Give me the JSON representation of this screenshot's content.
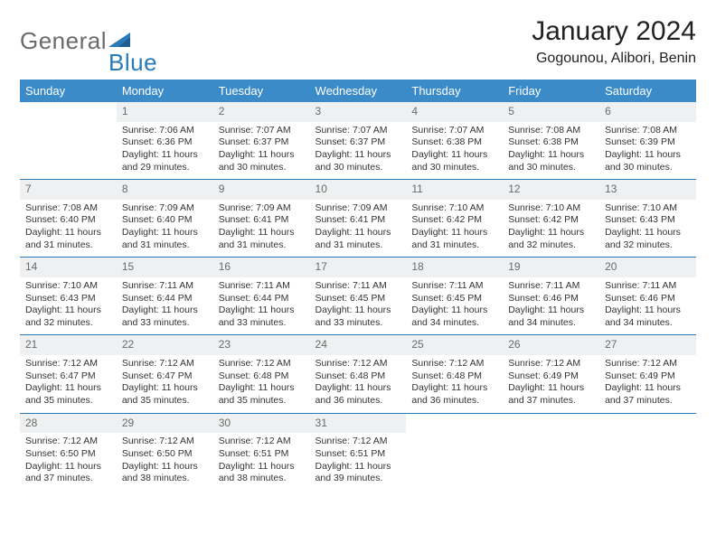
{
  "logo": {
    "part1": "General",
    "part2": "Blue"
  },
  "title": "January 2024",
  "location": "Gogounou, Alibori, Benin",
  "colors": {
    "header_bg": "#3b8bc9",
    "logo_gray": "#6b6b6b",
    "logo_blue": "#2a7ab8",
    "daynum_bg": "#eef0f2",
    "daynum_color": "#6a6a6a",
    "row_sep": "#2a7ab8"
  },
  "weekdays": [
    "Sunday",
    "Monday",
    "Tuesday",
    "Wednesday",
    "Thursday",
    "Friday",
    "Saturday"
  ],
  "weeks": [
    [
      {
        "n": "",
        "lines": []
      },
      {
        "n": "1",
        "lines": [
          "Sunrise: 7:06 AM",
          "Sunset: 6:36 PM",
          "Daylight: 11 hours",
          "and 29 minutes."
        ]
      },
      {
        "n": "2",
        "lines": [
          "Sunrise: 7:07 AM",
          "Sunset: 6:37 PM",
          "Daylight: 11 hours",
          "and 30 minutes."
        ]
      },
      {
        "n": "3",
        "lines": [
          "Sunrise: 7:07 AM",
          "Sunset: 6:37 PM",
          "Daylight: 11 hours",
          "and 30 minutes."
        ]
      },
      {
        "n": "4",
        "lines": [
          "Sunrise: 7:07 AM",
          "Sunset: 6:38 PM",
          "Daylight: 11 hours",
          "and 30 minutes."
        ]
      },
      {
        "n": "5",
        "lines": [
          "Sunrise: 7:08 AM",
          "Sunset: 6:38 PM",
          "Daylight: 11 hours",
          "and 30 minutes."
        ]
      },
      {
        "n": "6",
        "lines": [
          "Sunrise: 7:08 AM",
          "Sunset: 6:39 PM",
          "Daylight: 11 hours",
          "and 30 minutes."
        ]
      }
    ],
    [
      {
        "n": "7",
        "lines": [
          "Sunrise: 7:08 AM",
          "Sunset: 6:40 PM",
          "Daylight: 11 hours",
          "and 31 minutes."
        ]
      },
      {
        "n": "8",
        "lines": [
          "Sunrise: 7:09 AM",
          "Sunset: 6:40 PM",
          "Daylight: 11 hours",
          "and 31 minutes."
        ]
      },
      {
        "n": "9",
        "lines": [
          "Sunrise: 7:09 AM",
          "Sunset: 6:41 PM",
          "Daylight: 11 hours",
          "and 31 minutes."
        ]
      },
      {
        "n": "10",
        "lines": [
          "Sunrise: 7:09 AM",
          "Sunset: 6:41 PM",
          "Daylight: 11 hours",
          "and 31 minutes."
        ]
      },
      {
        "n": "11",
        "lines": [
          "Sunrise: 7:10 AM",
          "Sunset: 6:42 PM",
          "Daylight: 11 hours",
          "and 31 minutes."
        ]
      },
      {
        "n": "12",
        "lines": [
          "Sunrise: 7:10 AM",
          "Sunset: 6:42 PM",
          "Daylight: 11 hours",
          "and 32 minutes."
        ]
      },
      {
        "n": "13",
        "lines": [
          "Sunrise: 7:10 AM",
          "Sunset: 6:43 PM",
          "Daylight: 11 hours",
          "and 32 minutes."
        ]
      }
    ],
    [
      {
        "n": "14",
        "lines": [
          "Sunrise: 7:10 AM",
          "Sunset: 6:43 PM",
          "Daylight: 11 hours",
          "and 32 minutes."
        ]
      },
      {
        "n": "15",
        "lines": [
          "Sunrise: 7:11 AM",
          "Sunset: 6:44 PM",
          "Daylight: 11 hours",
          "and 33 minutes."
        ]
      },
      {
        "n": "16",
        "lines": [
          "Sunrise: 7:11 AM",
          "Sunset: 6:44 PM",
          "Daylight: 11 hours",
          "and 33 minutes."
        ]
      },
      {
        "n": "17",
        "lines": [
          "Sunrise: 7:11 AM",
          "Sunset: 6:45 PM",
          "Daylight: 11 hours",
          "and 33 minutes."
        ]
      },
      {
        "n": "18",
        "lines": [
          "Sunrise: 7:11 AM",
          "Sunset: 6:45 PM",
          "Daylight: 11 hours",
          "and 34 minutes."
        ]
      },
      {
        "n": "19",
        "lines": [
          "Sunrise: 7:11 AM",
          "Sunset: 6:46 PM",
          "Daylight: 11 hours",
          "and 34 minutes."
        ]
      },
      {
        "n": "20",
        "lines": [
          "Sunrise: 7:11 AM",
          "Sunset: 6:46 PM",
          "Daylight: 11 hours",
          "and 34 minutes."
        ]
      }
    ],
    [
      {
        "n": "21",
        "lines": [
          "Sunrise: 7:12 AM",
          "Sunset: 6:47 PM",
          "Daylight: 11 hours",
          "and 35 minutes."
        ]
      },
      {
        "n": "22",
        "lines": [
          "Sunrise: 7:12 AM",
          "Sunset: 6:47 PM",
          "Daylight: 11 hours",
          "and 35 minutes."
        ]
      },
      {
        "n": "23",
        "lines": [
          "Sunrise: 7:12 AM",
          "Sunset: 6:48 PM",
          "Daylight: 11 hours",
          "and 35 minutes."
        ]
      },
      {
        "n": "24",
        "lines": [
          "Sunrise: 7:12 AM",
          "Sunset: 6:48 PM",
          "Daylight: 11 hours",
          "and 36 minutes."
        ]
      },
      {
        "n": "25",
        "lines": [
          "Sunrise: 7:12 AM",
          "Sunset: 6:48 PM",
          "Daylight: 11 hours",
          "and 36 minutes."
        ]
      },
      {
        "n": "26",
        "lines": [
          "Sunrise: 7:12 AM",
          "Sunset: 6:49 PM",
          "Daylight: 11 hours",
          "and 37 minutes."
        ]
      },
      {
        "n": "27",
        "lines": [
          "Sunrise: 7:12 AM",
          "Sunset: 6:49 PM",
          "Daylight: 11 hours",
          "and 37 minutes."
        ]
      }
    ],
    [
      {
        "n": "28",
        "lines": [
          "Sunrise: 7:12 AM",
          "Sunset: 6:50 PM",
          "Daylight: 11 hours",
          "and 37 minutes."
        ]
      },
      {
        "n": "29",
        "lines": [
          "Sunrise: 7:12 AM",
          "Sunset: 6:50 PM",
          "Daylight: 11 hours",
          "and 38 minutes."
        ]
      },
      {
        "n": "30",
        "lines": [
          "Sunrise: 7:12 AM",
          "Sunset: 6:51 PM",
          "Daylight: 11 hours",
          "and 38 minutes."
        ]
      },
      {
        "n": "31",
        "lines": [
          "Sunrise: 7:12 AM",
          "Sunset: 6:51 PM",
          "Daylight: 11 hours",
          "and 39 minutes."
        ]
      },
      {
        "n": "",
        "lines": []
      },
      {
        "n": "",
        "lines": []
      },
      {
        "n": "",
        "lines": []
      }
    ]
  ]
}
